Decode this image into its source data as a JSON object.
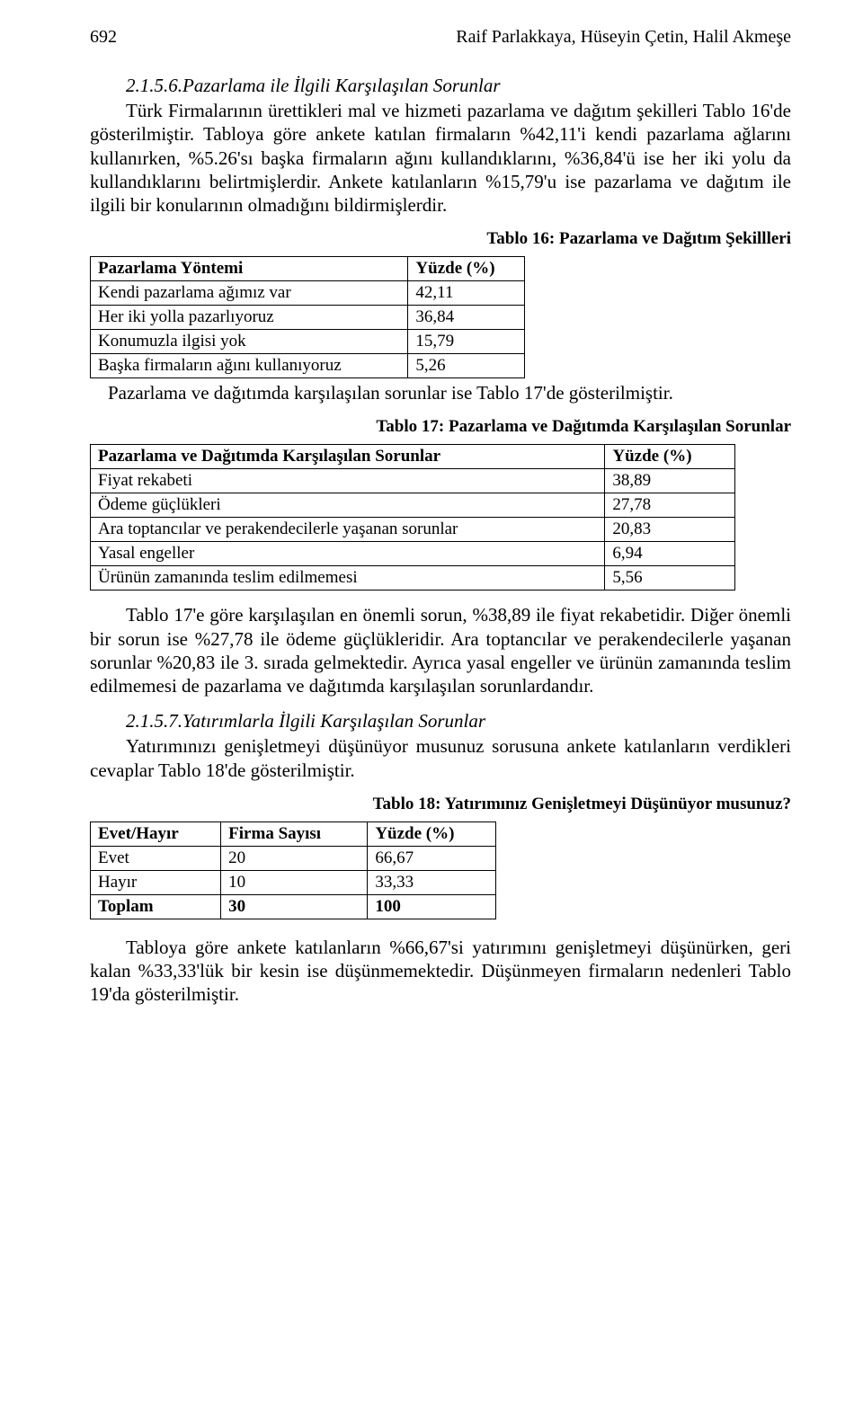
{
  "header": {
    "page_number": "692",
    "authors": "Raif Parlakkaya, Hüseyin Çetin, Halil Akmeşe"
  },
  "section1": {
    "heading": "2.1.5.6.Pazarlama ile İlgili Karşılaşılan Sorunlar",
    "para": "Türk Firmalarının ürettikleri mal ve hizmeti pazarlama ve dağıtım şekilleri Tablo 16'de gösterilmiştir. Tabloya göre ankete katılan firmaların %42,11'i kendi pazarlama ağlarını kullanırken, %5.26'sı başka firmaların ağını kullandıklarını, %36,84'ü ise her iki yolu da kullandıklarını belirtmişlerdir. Ankete katılanların %15,79'u ise pazarlama ve dağıtım ile ilgili bir konularının olmadığını bildirmişlerdir."
  },
  "table16": {
    "caption": "Tablo 16: Pazarlama ve Dağıtım Şekillleri",
    "col1": "Pazarlama Yöntemi",
    "col2": "Yüzde (%)",
    "rows": [
      {
        "label": "Kendi pazarlama ağımız var",
        "value": "42,11"
      },
      {
        "label": "Her iki yolla pazarlıyoruz",
        "value": "36,84"
      },
      {
        "label": "Konumuzla ilgisi yok",
        "value": "15,79"
      },
      {
        "label": "Başka firmaların ağını kullanıyoruz",
        "value": "5,26"
      }
    ],
    "after": "Pazarlama ve dağıtımda karşılaşılan sorunlar ise Tablo 17'de gösterilmiştir."
  },
  "table17": {
    "caption": "Tablo 17: Pazarlama ve Dağıtımda Karşılaşılan Sorunlar",
    "col1": "Pazarlama ve Dağıtımda Karşılaşılan Sorunlar",
    "col2": "Yüzde (%)",
    "rows": [
      {
        "label": "Fiyat rekabeti",
        "value": "38,89"
      },
      {
        "label": "Ödeme güçlükleri",
        "value": "27,78"
      },
      {
        "label": "Ara toptancılar ve perakendecilerle yaşanan sorunlar",
        "value": "20,83"
      },
      {
        "label": "Yasal engeller",
        "value": "6,94"
      },
      {
        "label": "Ürünün zamanında teslim edilmemesi",
        "value": "5,56"
      }
    ]
  },
  "para17": "Tablo 17'e göre karşılaşılan en önemli sorun, %38,89 ile fiyat rekabetidir. Diğer önemli bir sorun ise %27,78 ile ödeme güçlükleridir. Ara toptancılar ve perakendecilerle yaşanan sorunlar %20,83 ile 3. sırada gelmektedir. Ayrıca yasal engeller ve ürünün zamanında teslim edilmemesi de pazarlama ve dağıtımda karşılaşılan sorunlardandır.",
  "section2": {
    "heading": "2.1.5.7.Yatırımlarla İlgili Karşılaşılan Sorunlar",
    "para": "Yatırımınızı genişletmeyi düşünüyor musunuz sorusuna ankete katılanların verdikleri cevaplar Tablo 18'de gösterilmiştir."
  },
  "table18": {
    "caption": "Tablo 18: Yatırımınız Genişletmeyi Düşünüyor musunuz?",
    "col1": "Evet/Hayır",
    "col2": "Firma Sayısı",
    "col3": "Yüzde (%)",
    "rows": [
      {
        "c1": "Evet",
        "c2": "20",
        "c3": "66,67"
      },
      {
        "c1": "Hayır",
        "c2": "10",
        "c3": "33,33"
      },
      {
        "c1": "Toplam",
        "c2": "30",
        "c3": "100"
      }
    ]
  },
  "para18": "Tabloya göre ankete katılanların %66,67'si yatırımını genişletmeyi düşünürken, geri kalan %33,33'lük bir kesin ise düşünmemektedir. Düşünmeyen firmaların nedenleri Tablo 19'da gösterilmiştir."
}
